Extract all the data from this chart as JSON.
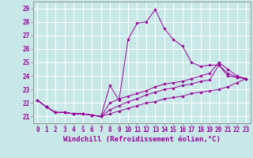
{
  "xlabel": "Windchill (Refroidissement éolien,°C)",
  "background_color": "#c8e8e8",
  "line_color": "#990099",
  "grid_color": "#ffffff",
  "xlim": [
    -0.5,
    23.5
  ],
  "ylim": [
    20.5,
    29.5
  ],
  "xticks": [
    0,
    1,
    2,
    3,
    4,
    5,
    6,
    7,
    8,
    9,
    10,
    11,
    12,
    13,
    14,
    15,
    16,
    17,
    18,
    19,
    20,
    21,
    22,
    23
  ],
  "yticks": [
    21,
    22,
    23,
    24,
    25,
    26,
    27,
    28,
    29
  ],
  "series": [
    [
      22.2,
      21.7,
      21.3,
      21.3,
      21.2,
      21.2,
      21.1,
      21.0,
      23.3,
      22.2,
      26.7,
      27.9,
      28.0,
      28.9,
      27.5,
      26.7,
      26.2,
      25.0,
      24.7,
      24.8,
      24.8,
      24.0,
      23.9,
      23.8
    ],
    [
      22.2,
      21.7,
      21.3,
      21.3,
      21.2,
      21.2,
      21.1,
      21.0,
      22.0,
      22.3,
      22.5,
      22.7,
      22.9,
      23.2,
      23.4,
      23.5,
      23.6,
      23.8,
      24.0,
      24.2,
      25.0,
      24.5,
      24.0,
      23.8
    ],
    [
      22.2,
      21.7,
      21.3,
      21.3,
      21.2,
      21.2,
      21.1,
      21.0,
      21.5,
      21.8,
      22.1,
      22.3,
      22.6,
      22.8,
      23.0,
      23.1,
      23.3,
      23.4,
      23.6,
      23.7,
      24.8,
      24.2,
      23.9,
      23.8
    ],
    [
      22.2,
      21.7,
      21.3,
      21.3,
      21.2,
      21.2,
      21.1,
      21.0,
      21.2,
      21.4,
      21.6,
      21.8,
      22.0,
      22.1,
      22.3,
      22.4,
      22.5,
      22.7,
      22.8,
      22.9,
      23.0,
      23.2,
      23.5,
      23.8
    ]
  ],
  "xlabel_fontsize": 6.5,
  "tick_fontsize": 5.5
}
